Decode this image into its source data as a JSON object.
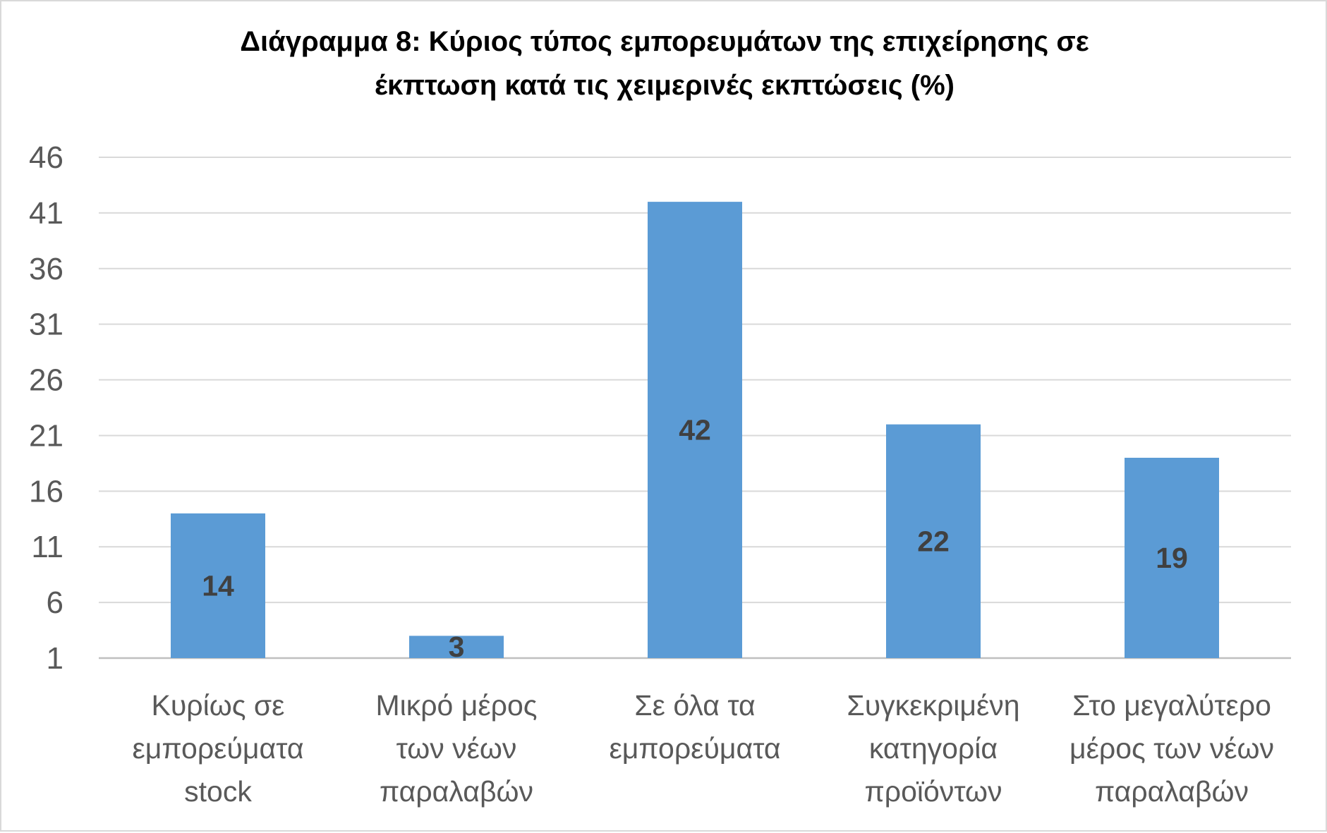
{
  "chart_data": {
    "type": "bar",
    "title": [
      "Διάγραμμα 8: Κύριος τύπος  εμπορευμάτων της επιχείρησης σε",
      "έκπτωση κατά τις χειμερινές εκπτώσεις (%)"
    ],
    "categories": [
      [
        "Κυρίως σε",
        "εμπορεύματα",
        "stock"
      ],
      [
        "Μικρό μέρος",
        "των νέων",
        "παραλαβών"
      ],
      [
        "Σε όλα τα",
        "εμπορεύματα"
      ],
      [
        "Συγκεκριμένη",
        "κατηγορία",
        "προϊόντων"
      ],
      [
        "Στο μεγαλύτερο",
        "μέρος των νέων",
        "παραλαβών"
      ]
    ],
    "values": [
      14,
      3,
      42,
      22,
      19
    ],
    "data_labels": [
      "14",
      "3",
      "42",
      "22",
      "19"
    ],
    "yticks": [
      1,
      6,
      11,
      16,
      21,
      26,
      31,
      36,
      41,
      46
    ],
    "ylim": [
      1,
      46
    ],
    "xlabel": "",
    "ylabel": "",
    "grid": true,
    "legend": "none",
    "colors": {
      "bar": "#5b9bd5",
      "grid": "#d9d9d9",
      "axis": "#bfbfbf"
    }
  }
}
